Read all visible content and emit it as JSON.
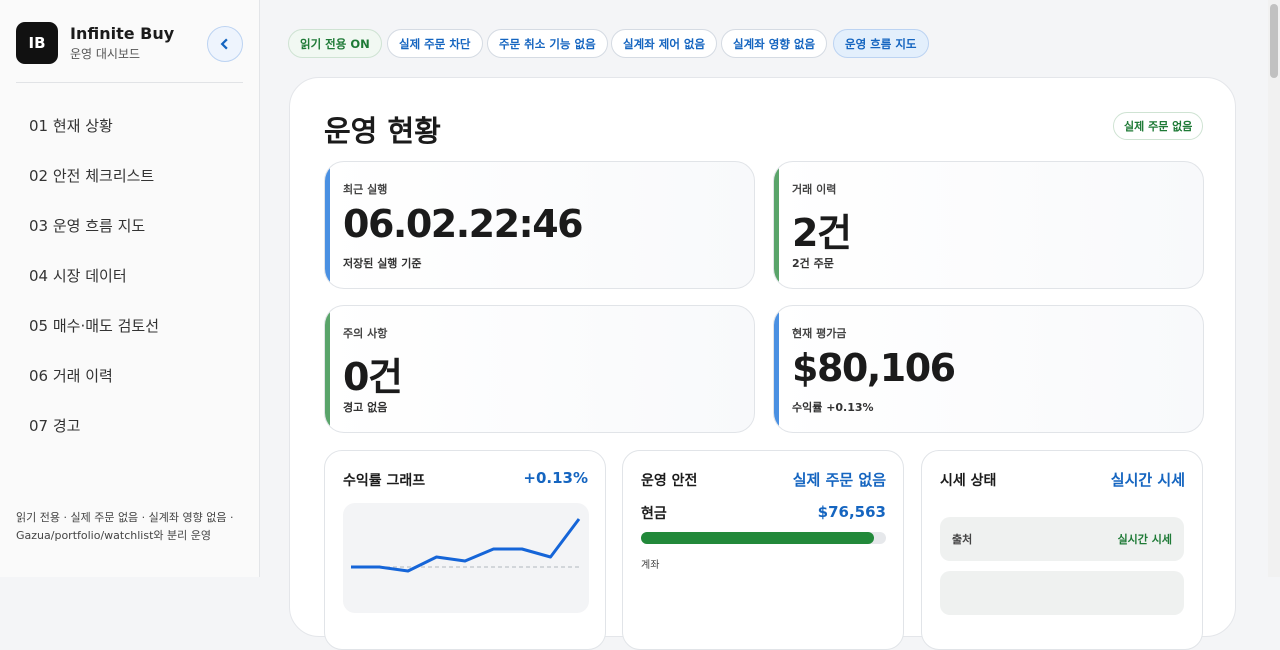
{
  "sidebar": {
    "logo": "IB",
    "title": "Infinite Buy",
    "subtitle": "운영 대시보드",
    "nav": [
      "01 현재 상황",
      "02 안전 체크리스트",
      "03 운영 흐름 지도",
      "04 시장 데이터",
      "05 매수·매도 검토선",
      "06 거래 이력",
      "07 경고"
    ],
    "footer": [
      "읽기 전용 · 실제 주문 없음 · 실계좌 영향 없음 ·",
      "Gazua/portfolio/watchlist와 분리 운영"
    ]
  },
  "chips": [
    "읽기 전용 ON",
    "실제 주문 차단",
    "주문 취소 기능 없음",
    "실계좌 제어 없음",
    "실계좌 영향 없음",
    "운영 흐름 지도"
  ],
  "overview": {
    "title": "운영 현황",
    "badge": "실제 주문 없음",
    "stats": [
      {
        "label": "최근 실행",
        "value": "06.02.22:46",
        "note": "저장된 실행 기준"
      },
      {
        "label": "거래 이력",
        "value": "2건",
        "note": "2건 주문"
      },
      {
        "label": "주의 사항",
        "value": "0건",
        "note": "경고 없음"
      },
      {
        "label": "현재 평가금",
        "value": "$80,106",
        "note": "수익률 +0.13%"
      }
    ]
  },
  "panels": {
    "profit": {
      "title": "수익률 그래프",
      "value": "+0.13%",
      "chart": {
        "values": [
          0,
          0,
          -2,
          5,
          3,
          9,
          9,
          5,
          24
        ],
        "baseline": 0,
        "ylim": [
          -10,
          32
        ]
      }
    },
    "safety": {
      "title": "운영 안전",
      "status": "실제 주문 없음",
      "cash_label": "현금",
      "cash_value": "$76,563",
      "cash_bar": 95,
      "account_label": "계좌"
    },
    "market": {
      "title": "시세 상태",
      "status": "실시간 시세",
      "rows": [
        {
          "label": "출처",
          "value": "실시간 시세"
        }
      ]
    }
  }
}
